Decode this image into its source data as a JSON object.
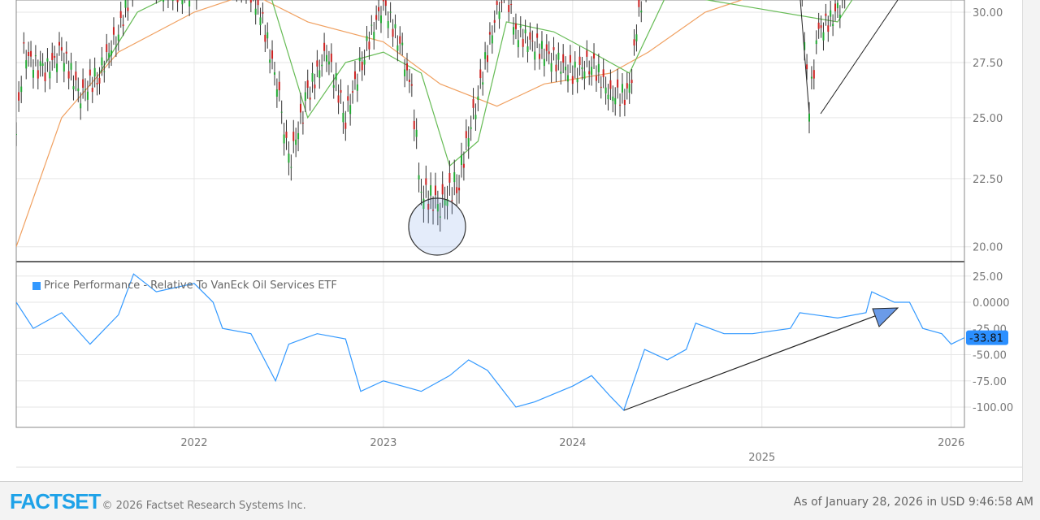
{
  "chart_data": [
    {
      "type": "candlestick",
      "panel": "price",
      "yscale": "log",
      "ylim": [
        19.3,
        31
      ],
      "yticks": [
        "20.00",
        "22.50",
        "25.00",
        "27.50",
        "30.00"
      ],
      "xlim": [
        2021.06,
        2026.07
      ],
      "xticks": [
        "2022",
        "2023",
        "2024",
        "2025",
        "2026"
      ],
      "price": [
        [
          2021.06,
          24.3
        ],
        [
          2021.1,
          28
        ],
        [
          2021.2,
          27
        ],
        [
          2021.3,
          28
        ],
        [
          2021.4,
          26
        ],
        [
          2021.5,
          27
        ],
        [
          2021.6,
          29
        ],
        [
          2021.7,
          32
        ],
        [
          2021.9,
          31
        ],
        [
          2022.0,
          31
        ],
        [
          2022.1,
          33
        ],
        [
          2022.3,
          31
        ],
        [
          2022.35,
          30
        ],
        [
          2022.45,
          26
        ],
        [
          2022.5,
          23
        ],
        [
          2022.6,
          26
        ],
        [
          2022.7,
          28
        ],
        [
          2022.8,
          25
        ],
        [
          2022.9,
          28
        ],
        [
          2023.0,
          30.5
        ],
        [
          2023.1,
          28
        ],
        [
          2023.15,
          26
        ],
        [
          2023.2,
          22
        ],
        [
          2023.3,
          21.5
        ],
        [
          2023.4,
          22.5
        ],
        [
          2023.5,
          26
        ],
        [
          2023.6,
          30
        ],
        [
          2023.65,
          31
        ],
        [
          2023.7,
          29
        ],
        [
          2023.85,
          28
        ],
        [
          2024.0,
          27
        ],
        [
          2024.1,
          27.5
        ],
        [
          2024.2,
          26
        ],
        [
          2024.3,
          26
        ],
        [
          2024.35,
          30
        ],
        [
          2024.4,
          32
        ],
        [
          2025.2,
          32
        ],
        [
          2025.25,
          25.5
        ],
        [
          2025.3,
          29
        ],
        [
          2025.4,
          30
        ],
        [
          2025.45,
          31
        ]
      ],
      "ma_green": [
        [
          2021.5,
          27
        ],
        [
          2021.7,
          30
        ],
        [
          2022.1,
          32
        ],
        [
          2022.4,
          31
        ],
        [
          2022.6,
          25
        ],
        [
          2022.8,
          27.5
        ],
        [
          2023.0,
          28
        ],
        [
          2023.2,
          27
        ],
        [
          2023.35,
          23
        ],
        [
          2023.5,
          24
        ],
        [
          2023.65,
          29.5
        ],
        [
          2023.9,
          29
        ],
        [
          2024.1,
          28
        ],
        [
          2024.3,
          27
        ],
        [
          2024.5,
          31
        ],
        [
          2025.4,
          29.5
        ],
        [
          2025.5,
          31
        ]
      ],
      "ma_orange": [
        [
          2021.06,
          20
        ],
        [
          2021.3,
          25
        ],
        [
          2021.6,
          28
        ],
        [
          2022.0,
          30
        ],
        [
          2022.3,
          31
        ],
        [
          2022.6,
          29.5
        ],
        [
          2023.0,
          28.5
        ],
        [
          2023.3,
          26.5
        ],
        [
          2023.6,
          25.5
        ],
        [
          2023.85,
          26.5
        ],
        [
          2024.2,
          27
        ],
        [
          2024.4,
          28
        ],
        [
          2024.7,
          30
        ],
        [
          2025.0,
          31
        ]
      ]
    },
    {
      "type": "line",
      "panel": "performance",
      "ylim": [
        -110,
        30
      ],
      "yticks": [
        "25.00",
        "0.0000",
        "-25.00",
        "-50.00",
        "-75.00",
        "-100.00"
      ],
      "series": [
        {
          "name": "Price Performance - Relative To VanEck Oil Services ETF",
          "color": "#3399ff",
          "points": [
            [
              2021.06,
              0
            ],
            [
              2021.15,
              -25
            ],
            [
              2021.3,
              -10
            ],
            [
              2021.45,
              -40
            ],
            [
              2021.6,
              -12
            ],
            [
              2021.68,
              27
            ],
            [
              2021.8,
              10
            ],
            [
              2022.0,
              18
            ],
            [
              2022.1,
              0
            ],
            [
              2022.15,
              -25
            ],
            [
              2022.3,
              -30
            ],
            [
              2022.43,
              -75
            ],
            [
              2022.5,
              -40
            ],
            [
              2022.65,
              -30
            ],
            [
              2022.8,
              -35
            ],
            [
              2022.88,
              -85
            ],
            [
              2023.0,
              -75
            ],
            [
              2023.2,
              -85
            ],
            [
              2023.35,
              -70
            ],
            [
              2023.45,
              -55
            ],
            [
              2023.55,
              -65
            ],
            [
              2023.7,
              -100
            ],
            [
              2023.8,
              -95
            ],
            [
              2024.0,
              -80
            ],
            [
              2024.1,
              -70
            ],
            [
              2024.2,
              -90
            ],
            [
              2024.27,
              -103
            ],
            [
              2024.38,
              -45
            ],
            [
              2024.5,
              -55
            ],
            [
              2024.6,
              -45
            ],
            [
              2024.65,
              -20
            ],
            [
              2024.8,
              -30
            ],
            [
              2024.95,
              -30
            ],
            [
              2025.15,
              -25
            ],
            [
              2025.2,
              -10
            ],
            [
              2025.4,
              -15
            ],
            [
              2025.55,
              -10
            ],
            [
              2025.58,
              10
            ],
            [
              2025.7,
              0
            ],
            [
              2025.78,
              0
            ],
            [
              2025.85,
              -25
            ],
            [
              2025.95,
              -30
            ],
            [
              2026.0,
              -40
            ],
            [
              2026.07,
              -33.81
            ]
          ]
        }
      ],
      "last_value": "-33.81"
    }
  ],
  "legend": {
    "label": "Price Performance - Relative To VanEck Oil Services ETF",
    "color": "#3399ff"
  },
  "footer": {
    "logo": "FACTSET",
    "copyright": "© 2026 Factset Research Systems Inc.",
    "as_of": "As of January 28, 2026 in USD 9:46:58 AM"
  }
}
